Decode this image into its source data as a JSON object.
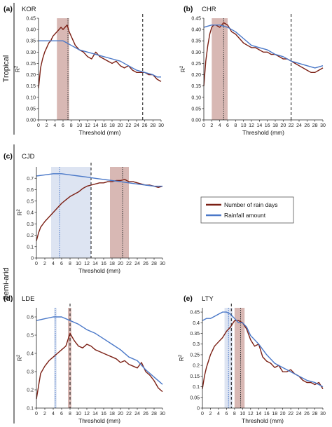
{
  "regions": [
    {
      "label": "Tropical"
    },
    {
      "label": "Semi-arid"
    }
  ],
  "legend": {
    "items": [
      {
        "label": "Number of rain days",
        "color": "#7b1f14"
      },
      {
        "label": "Rainfall amount",
        "color": "#4a78c8"
      }
    ]
  },
  "colors": {
    "rain_days": "#7b1f14",
    "rainfall": "#4a78c8",
    "shade_days": "#d8b8b4",
    "shade_rain": "#dde4f2"
  },
  "chart_data": [
    {
      "id": "a",
      "panel_letter": "(a)",
      "station": "KOR",
      "type": "line",
      "xlabel": "Threshold (mm)",
      "ylabel": "R2",
      "xlim": [
        0,
        30
      ],
      "ylim": [
        0,
        0.45
      ],
      "xticks": [
        0,
        2,
        4,
        6,
        8,
        10,
        12,
        14,
        16,
        18,
        20,
        22,
        24,
        26,
        28,
        30
      ],
      "yticks": [
        0,
        0.05,
        0.1,
        0.15,
        0.2,
        0.25,
        0.3,
        0.35,
        0.4,
        0.45
      ],
      "ytick_labels": [
        "0.00",
        "0.05",
        "0.10",
        "0.15",
        "0.20",
        "0.25",
        "0.30",
        "0.35",
        "0.40",
        "0.45"
      ],
      "shade_rain_days": [
        4.5,
        7.5
      ],
      "dotted_rain_days": 7.2,
      "dashed_rainfall": 25.5,
      "series": [
        {
          "key": "rain_days",
          "x": [
            0,
            0.5,
            1,
            1.5,
            2,
            2.5,
            3,
            3.5,
            4,
            4.5,
            5,
            5.5,
            6,
            6.5,
            7,
            7.5,
            8,
            9,
            10,
            11,
            12,
            13,
            14,
            15,
            16,
            17,
            18,
            19,
            20,
            21,
            22,
            23,
            24,
            25,
            26,
            27,
            28,
            29,
            30
          ],
          "y": [
            0.14,
            0.23,
            0.27,
            0.3,
            0.32,
            0.34,
            0.35,
            0.37,
            0.38,
            0.39,
            0.4,
            0.41,
            0.4,
            0.41,
            0.42,
            0.39,
            0.37,
            0.33,
            0.31,
            0.3,
            0.28,
            0.27,
            0.3,
            0.28,
            0.27,
            0.26,
            0.25,
            0.26,
            0.24,
            0.23,
            0.24,
            0.22,
            0.21,
            0.21,
            0.21,
            0.2,
            0.2,
            0.18,
            0.17
          ]
        },
        {
          "key": "rainfall",
          "x": [
            0,
            2,
            4,
            6,
            7,
            8,
            9,
            10,
            12,
            14,
            16,
            18,
            20,
            22,
            24,
            26,
            28,
            29,
            30
          ],
          "y": [
            0.35,
            0.35,
            0.35,
            0.35,
            0.34,
            0.33,
            0.32,
            0.31,
            0.3,
            0.29,
            0.28,
            0.27,
            0.26,
            0.24,
            0.22,
            0.21,
            0.2,
            0.19,
            0.19
          ]
        }
      ]
    },
    {
      "id": "b",
      "panel_letter": "(b)",
      "station": "CHR",
      "type": "line",
      "xlabel": "Threshold (mm)",
      "ylabel": "R2",
      "xlim": [
        0,
        30
      ],
      "ylim": [
        0,
        0.45
      ],
      "xticks": [
        0,
        2,
        4,
        6,
        8,
        10,
        12,
        14,
        16,
        18,
        20,
        22,
        24,
        26,
        28,
        30
      ],
      "yticks": [
        0,
        0.05,
        0.1,
        0.15,
        0.2,
        0.25,
        0.3,
        0.35,
        0.4,
        0.45
      ],
      "ytick_labels": [
        "0.00",
        "0.05",
        "0.10",
        "0.15",
        "0.20",
        "0.25",
        "0.30",
        "0.35",
        "0.40",
        "0.45"
      ],
      "shade_rain_days": [
        2.0,
        6.0
      ],
      "dotted_rain_days": 5.0,
      "dashed_rainfall": 22.0,
      "series": [
        {
          "key": "rain_days",
          "x": [
            0,
            0.5,
            1,
            1.5,
            2,
            2.5,
            3,
            4,
            5,
            6,
            7,
            8,
            9,
            10,
            11,
            12,
            13,
            14,
            15,
            16,
            17,
            18,
            19,
            20,
            21,
            22,
            23,
            24,
            25,
            26,
            27,
            28,
            29,
            30
          ],
          "y": [
            0.15,
            0.26,
            0.33,
            0.38,
            0.41,
            0.42,
            0.42,
            0.41,
            0.43,
            0.42,
            0.39,
            0.38,
            0.36,
            0.34,
            0.33,
            0.32,
            0.32,
            0.31,
            0.3,
            0.3,
            0.29,
            0.29,
            0.28,
            0.27,
            0.27,
            0.26,
            0.25,
            0.24,
            0.23,
            0.22,
            0.21,
            0.21,
            0.22,
            0.23
          ]
        },
        {
          "key": "rainfall",
          "x": [
            0,
            2,
            4,
            6,
            8,
            10,
            12,
            14,
            16,
            18,
            20,
            22,
            24,
            26,
            28,
            30
          ],
          "y": [
            0.41,
            0.42,
            0.42,
            0.41,
            0.39,
            0.36,
            0.33,
            0.32,
            0.31,
            0.29,
            0.28,
            0.26,
            0.25,
            0.24,
            0.23,
            0.24
          ]
        }
      ]
    },
    {
      "id": "c",
      "panel_letter": "(c)",
      "station": "CJD",
      "type": "line",
      "xlabel": "Threshold (mm)",
      "ylabel": "R2",
      "xlim": [
        0,
        30
      ],
      "ylim": [
        0,
        0.8
      ],
      "xticks": [
        0,
        2,
        4,
        6,
        8,
        10,
        12,
        14,
        16,
        18,
        20,
        22,
        24,
        26,
        28,
        30
      ],
      "yticks": [
        0,
        0.1,
        0.2,
        0.3,
        0.4,
        0.5,
        0.6,
        0.7
      ],
      "ytick_labels": [
        "0",
        "0.1",
        "0.2",
        "0.3",
        "0.4",
        "0.5",
        "0.6",
        "0.7"
      ],
      "shade_rain": [
        3.5,
        13.0
      ],
      "shade_rain_days": [
        17.5,
        22.0
      ],
      "dotted_rain": 5.5,
      "dashed_rainfall": 13.0,
      "dotted_rain_days": 20.5,
      "series": [
        {
          "key": "rain_days",
          "x": [
            0,
            0.5,
            1,
            2,
            3,
            4,
            5,
            6,
            7,
            8,
            9,
            10,
            11,
            12,
            13,
            14,
            15,
            16,
            17,
            18,
            19,
            20,
            21,
            22,
            23,
            24,
            25,
            26,
            27,
            28,
            29,
            30
          ],
          "y": [
            0.15,
            0.22,
            0.27,
            0.32,
            0.36,
            0.4,
            0.44,
            0.48,
            0.51,
            0.54,
            0.56,
            0.58,
            0.61,
            0.63,
            0.64,
            0.65,
            0.66,
            0.66,
            0.67,
            0.67,
            0.68,
            0.68,
            0.69,
            0.67,
            0.67,
            0.66,
            0.65,
            0.64,
            0.64,
            0.63,
            0.62,
            0.63
          ]
        },
        {
          "key": "rainfall",
          "x": [
            0,
            2,
            4,
            6,
            8,
            10,
            12,
            14,
            16,
            18,
            20,
            22,
            24,
            26,
            28,
            30
          ],
          "y": [
            0.72,
            0.73,
            0.74,
            0.74,
            0.73,
            0.72,
            0.71,
            0.7,
            0.69,
            0.68,
            0.67,
            0.66,
            0.65,
            0.64,
            0.63,
            0.63
          ]
        }
      ]
    },
    {
      "id": "d",
      "panel_letter": "(d)",
      "station": "LDE",
      "type": "line",
      "xlabel": "Threshold (mm)",
      "ylabel": "R2",
      "xlim": [
        0,
        30
      ],
      "ylim": [
        0.1,
        0.65
      ],
      "xticks": [
        0,
        2,
        4,
        6,
        8,
        10,
        12,
        14,
        16,
        18,
        20,
        22,
        24,
        26,
        28,
        30
      ],
      "yticks": [
        0.1,
        0.2,
        0.3,
        0.4,
        0.5,
        0.6
      ],
      "ytick_labels": [
        "0.1",
        "0.2",
        "0.3",
        "0.4",
        "0.5",
        "0.6"
      ],
      "shade_rain": [
        4.2,
        4.8
      ],
      "shade_rain_days": [
        7.5,
        8.3
      ],
      "dotted_rain": 4.5,
      "dashed_rainfall": 8.0,
      "series": [
        {
          "key": "rain_days",
          "x": [
            0,
            0.5,
            1,
            2,
            3,
            4,
            5,
            6,
            7,
            8,
            9,
            10,
            11,
            12,
            13,
            14,
            15,
            16,
            17,
            18,
            19,
            20,
            21,
            22,
            23,
            24,
            25,
            26,
            27,
            28,
            29,
            30
          ],
          "y": [
            0.15,
            0.22,
            0.29,
            0.33,
            0.36,
            0.38,
            0.4,
            0.42,
            0.44,
            0.51,
            0.47,
            0.44,
            0.43,
            0.45,
            0.44,
            0.42,
            0.41,
            0.4,
            0.39,
            0.38,
            0.37,
            0.35,
            0.36,
            0.34,
            0.33,
            0.32,
            0.35,
            0.3,
            0.28,
            0.25,
            0.21,
            0.19
          ]
        },
        {
          "key": "rainfall",
          "x": [
            0,
            2,
            4,
            6,
            8,
            10,
            12,
            14,
            16,
            18,
            20,
            22,
            24,
            26,
            28,
            30
          ],
          "y": [
            0.58,
            0.59,
            0.6,
            0.6,
            0.58,
            0.56,
            0.53,
            0.51,
            0.48,
            0.45,
            0.42,
            0.38,
            0.36,
            0.31,
            0.27,
            0.23
          ]
        }
      ]
    },
    {
      "id": "e",
      "panel_letter": "(e)",
      "station": "LTY",
      "type": "line",
      "xlabel": "Threshold (mm)",
      "ylabel": "R2",
      "xlim": [
        0,
        30
      ],
      "ylim": [
        0,
        0.47
      ],
      "xticks": [
        0,
        2,
        4,
        6,
        8,
        10,
        12,
        14,
        16,
        18,
        20,
        22,
        24,
        26,
        28,
        30
      ],
      "yticks": [
        0,
        0.05,
        0.1,
        0.15,
        0.2,
        0.25,
        0.3,
        0.35,
        0.4,
        0.45
      ],
      "ytick_labels": [
        "0",
        "0.05",
        "0.1",
        "0.15",
        "0.2",
        "0.25",
        "0.3",
        "0.35",
        "0.4",
        "0.45"
      ],
      "shade_rain": [
        5.5,
        7.5
      ],
      "shade_rain_days": [
        8.0,
        10.5
      ],
      "dotted_rain": 6.5,
      "dashed_rainfall": 7.2,
      "dotted_rain_days": 9.5,
      "series": [
        {
          "key": "rain_days",
          "x": [
            0,
            0.5,
            1,
            1.5,
            2,
            3,
            4,
            5,
            6,
            7,
            8,
            9,
            10,
            11,
            12,
            13,
            14,
            15,
            16,
            17,
            18,
            19,
            20,
            21,
            22,
            23,
            24,
            25,
            26,
            27,
            28,
            29,
            30
          ],
          "y": [
            0.09,
            0.15,
            0.19,
            0.22,
            0.25,
            0.29,
            0.31,
            0.33,
            0.36,
            0.38,
            0.41,
            0.41,
            0.4,
            0.37,
            0.32,
            0.29,
            0.3,
            0.24,
            0.22,
            0.21,
            0.19,
            0.2,
            0.17,
            0.17,
            0.18,
            0.16,
            0.15,
            0.13,
            0.12,
            0.12,
            0.11,
            0.12,
            0.09
          ]
        },
        {
          "key": "rainfall",
          "x": [
            0,
            1,
            2,
            3,
            4,
            5,
            6,
            7,
            8,
            9,
            10,
            11,
            12,
            14,
            16,
            18,
            20,
            22,
            24,
            26,
            28,
            30
          ],
          "y": [
            0.41,
            0.42,
            0.42,
            0.43,
            0.44,
            0.45,
            0.45,
            0.44,
            0.42,
            0.4,
            0.4,
            0.38,
            0.34,
            0.3,
            0.25,
            0.21,
            0.19,
            0.17,
            0.15,
            0.13,
            0.12,
            0.1
          ]
        }
      ]
    }
  ]
}
